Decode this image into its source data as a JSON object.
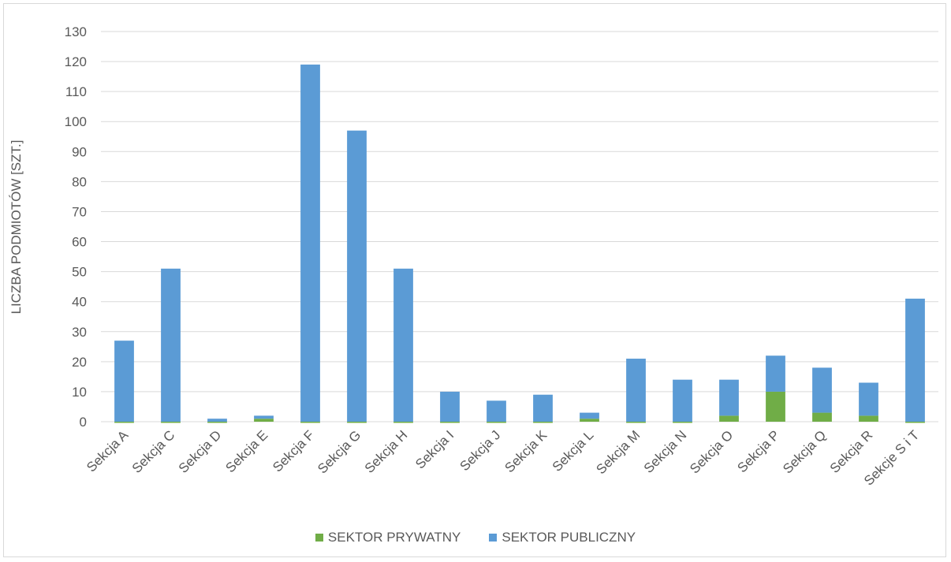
{
  "chart_data": {
    "type": "bar",
    "stacked": true,
    "title": "",
    "xlabel": "",
    "ylabel": "LICZBA PODMIOTÓW [SZT.]",
    "ylim": [
      0,
      130
    ],
    "yticks": [
      0,
      10,
      20,
      30,
      40,
      50,
      60,
      70,
      80,
      90,
      100,
      110,
      120,
      130
    ],
    "grid": true,
    "legend_position": "bottom",
    "categories": [
      "Sekcja A",
      "Sekcja C",
      "Sekcja D",
      "Sekcja E",
      "Sekcja F",
      "Sekcja G",
      "Sekcja H",
      "Sekcja I",
      "Sekcja J",
      "Sekcja K",
      "Sekcja L",
      "Sekcja M",
      "Sekcja N",
      "Sekcja O",
      "Sekcja P",
      "Sekcja Q",
      "Sekcja R",
      "Sekcje S i T"
    ],
    "series": [
      {
        "name": "SEKTOR PRYWATNY",
        "color": "#70ad47",
        "values": [
          0,
          0,
          0,
          1,
          0,
          0,
          0,
          0,
          0,
          0,
          1,
          0,
          0,
          2,
          10,
          3,
          2,
          0
        ]
      },
      {
        "name": "SEKTOR PUBLICZNY",
        "color": "#5b9bd5",
        "values": [
          27,
          51,
          1,
          1,
          119,
          97,
          51,
          10,
          7,
          9,
          2,
          21,
          14,
          12,
          12,
          15,
          11,
          41
        ]
      }
    ]
  }
}
